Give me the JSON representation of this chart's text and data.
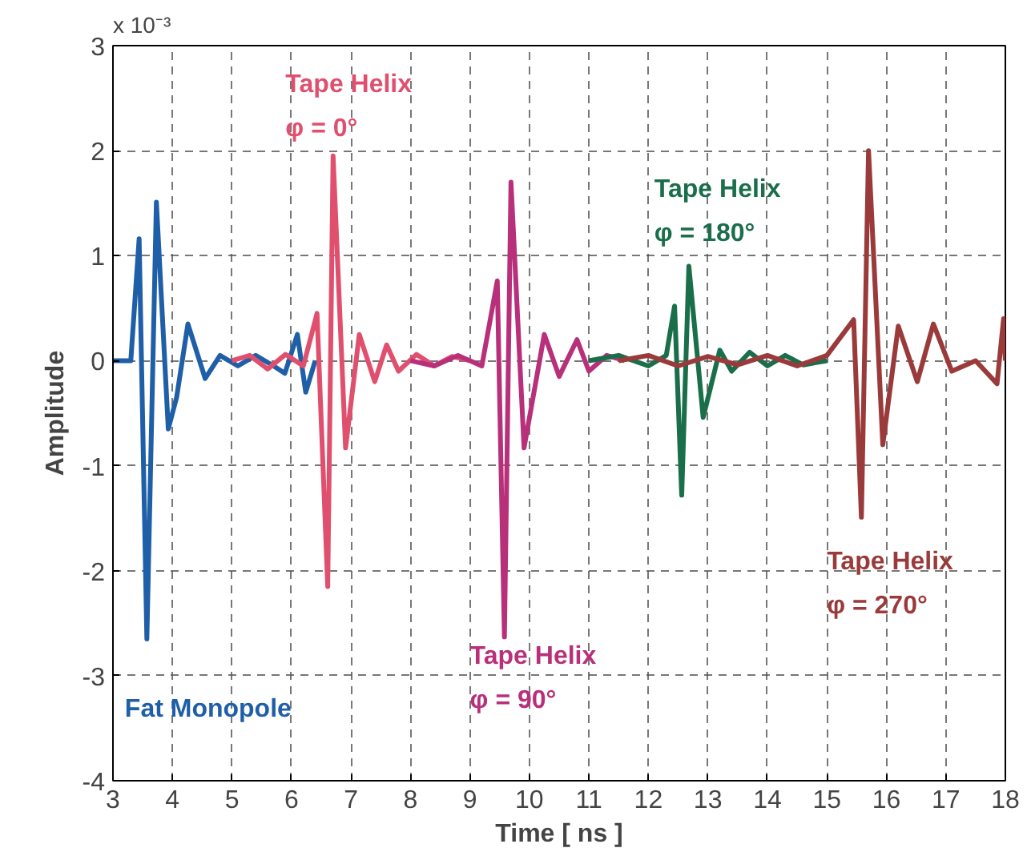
{
  "chart_data": {
    "type": "line",
    "xlabel": "Time [ ns ]",
    "ylabel": "Amplitude",
    "xlim": [
      3,
      18
    ],
    "ylim": [
      -4,
      3
    ],
    "xticks": [
      3,
      4,
      5,
      6,
      7,
      8,
      9,
      10,
      11,
      12,
      13,
      14,
      15,
      16,
      17,
      18
    ],
    "yticks": [
      -4,
      -3,
      -2,
      -1,
      0,
      1,
      2,
      3
    ],
    "grid": true,
    "line_style": "solid",
    "marker": "none",
    "annotations": [
      "x 10⁻³"
    ],
    "series": [
      {
        "name": "Fat Monopole",
        "color": "#1f5fa8",
        "x": [
          3.0,
          3.3,
          3.44,
          3.57,
          3.73,
          3.93,
          4.07,
          4.26,
          4.55,
          4.8,
          5.1,
          5.4,
          5.7,
          5.89,
          6.1,
          6.24,
          6.4
        ],
        "values": [
          0,
          0,
          1.16,
          -2.65,
          1.51,
          -0.65,
          -0.35,
          0.35,
          -0.17,
          0.05,
          -0.05,
          0.05,
          -0.05,
          -0.12,
          0.25,
          -0.3,
          0
        ]
      },
      {
        "name": "Tape Helix\nφ = 0°",
        "color": "#e0506e",
        "x": [
          5.0,
          5.3,
          5.6,
          5.9,
          6.2,
          6.43,
          6.61,
          6.7,
          6.91,
          7.14,
          7.4,
          7.6,
          7.8,
          8.1,
          8.4,
          8.7,
          9.0
        ],
        "values": [
          0,
          0.05,
          -0.08,
          0.06,
          -0.05,
          0.45,
          -2.15,
          1.95,
          -0.83,
          0.25,
          -0.2,
          0.15,
          -0.1,
          0.06,
          -0.05,
          0.04,
          0
        ]
      },
      {
        "name": "Tape Helix\nφ = 90°",
        "color": "#b8307a",
        "x": [
          8.0,
          8.4,
          8.8,
          9.2,
          9.46,
          9.58,
          9.69,
          9.91,
          10.25,
          10.5,
          10.8,
          11.0,
          11.3,
          11.6
        ],
        "values": [
          0,
          -0.05,
          0.05,
          -0.05,
          0.76,
          -2.63,
          1.7,
          -0.83,
          0.25,
          -0.15,
          0.2,
          -0.1,
          0.05,
          0
        ]
      },
      {
        "name": "Tape Helix\nφ = 180°",
        "color": "#1a6e4a",
        "x": [
          11.0,
          11.5,
          12.0,
          12.3,
          12.44,
          12.56,
          12.68,
          12.92,
          13.2,
          13.4,
          13.7,
          14.0,
          14.3,
          14.6,
          15.0
        ],
        "values": [
          0,
          0.05,
          -0.05,
          0.05,
          0.52,
          -1.28,
          0.9,
          -0.54,
          0.1,
          -0.1,
          0.08,
          -0.05,
          0.05,
          -0.04,
          0
        ]
      },
      {
        "name": "Tape Helix\nφ = 270°",
        "color": "#9a3a3a",
        "x": [
          11.5,
          12.0,
          12.5,
          13.0,
          13.5,
          14.0,
          14.5,
          15.0,
          15.45,
          15.58,
          15.7,
          15.94,
          16.2,
          16.52,
          16.79,
          17.1,
          17.5,
          17.86,
          17.97,
          18.0
        ],
        "values": [
          0,
          0.05,
          -0.05,
          0.04,
          -0.04,
          0.05,
          -0.05,
          0.05,
          0.39,
          -1.49,
          2.0,
          -0.8,
          0.33,
          -0.2,
          0.35,
          -0.1,
          0,
          -0.22,
          0.4,
          0
        ]
      }
    ]
  }
}
